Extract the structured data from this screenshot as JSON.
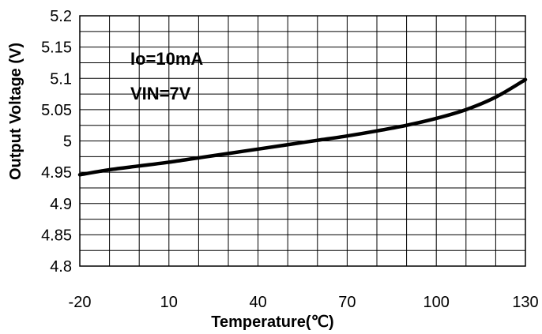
{
  "chart_data": {
    "type": "line",
    "title": "",
    "xlabel": "Temperature(℃)",
    "ylabel": "Output Voltage (V)",
    "xlim": [
      -20,
      130
    ],
    "ylim": [
      4.8,
      5.2
    ],
    "x_ticks": [
      -20,
      10,
      40,
      70,
      100,
      130
    ],
    "x_tick_labels": [
      "-20",
      "10",
      "40",
      "70",
      "100",
      "130"
    ],
    "y_ticks": [
      4.8,
      4.85,
      4.9,
      4.95,
      5.0,
      5.05,
      5.1,
      5.15,
      5.2
    ],
    "y_tick_labels": [
      "4.8",
      "4.85",
      "4.9",
      "4.95",
      "5",
      "5.05",
      "5.1",
      "5.15",
      "5.2"
    ],
    "x_minor_step": 10,
    "y_minor_step": 0.025,
    "grid": true,
    "annotations": [
      "Io=10mA",
      "VIN=7V"
    ],
    "series": [
      {
        "color": "#000000",
        "x": [
          -20,
          -10,
          0,
          10,
          20,
          30,
          40,
          50,
          60,
          70,
          80,
          90,
          100,
          110,
          120,
          130
        ],
        "y": [
          4.946,
          4.954,
          4.96,
          4.966,
          4.973,
          4.98,
          4.987,
          4.994,
          5.001,
          5.008,
          5.016,
          5.025,
          5.036,
          5.05,
          5.07,
          5.098
        ]
      }
    ]
  }
}
